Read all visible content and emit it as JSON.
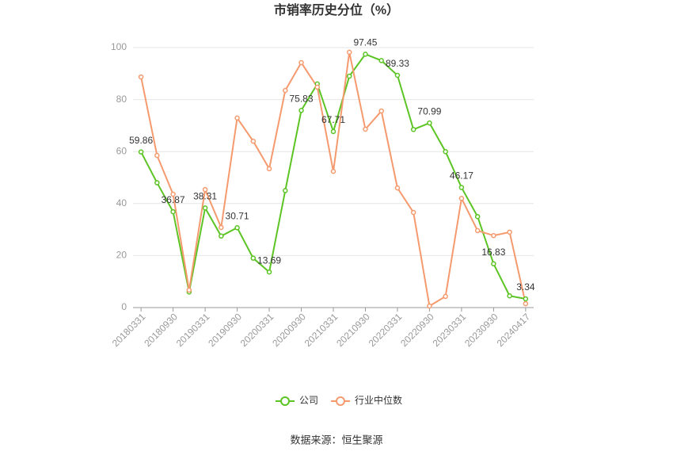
{
  "chart_data": {
    "type": "line",
    "title": "市销率历史分位（%）",
    "categories": [
      "20180331",
      null,
      "20180930",
      null,
      "20190331",
      null,
      "20190930",
      null,
      "20200331",
      null,
      "20200930",
      null,
      "20210331",
      null,
      "20210930",
      null,
      "20220331",
      null,
      "20220930",
      null,
      "20230331",
      null,
      "20230930",
      null,
      "20240417"
    ],
    "series": [
      {
        "name": "公司",
        "color": "#5cc424",
        "values": [
          59.86,
          48,
          36.87,
          6,
          38.31,
          27.5,
          30.71,
          19,
          13.69,
          45,
          75.83,
          86,
          67.71,
          89,
          97.45,
          95,
          89.33,
          68.5,
          70.99,
          60,
          46.17,
          35,
          16.83,
          4.5,
          3.34
        ],
        "value_labels": [
          "59.86",
          null,
          "36.87",
          null,
          "38.31",
          null,
          "30.71",
          null,
          "13.69",
          null,
          "75.83",
          null,
          "67.71",
          null,
          "97.45",
          null,
          "89.33",
          null,
          "70.99",
          null,
          "46.17",
          null,
          "16.83",
          null,
          "3.34"
        ]
      },
      {
        "name": "行业中位数",
        "color": "#f59a6e",
        "values": [
          88.7,
          58.5,
          43.6,
          6.7,
          45.4,
          30.8,
          72.9,
          64,
          53.4,
          83.5,
          94.2,
          84.8,
          52.4,
          98.2,
          68.6,
          75.6,
          46,
          36.6,
          0.6,
          4.3,
          42,
          29.6,
          27.7,
          29,
          1.5
        ]
      }
    ],
    "ylim": [
      0,
      100
    ],
    "yticks": [
      0,
      20,
      40,
      60,
      80,
      100
    ],
    "grid": true,
    "legend": "bottom",
    "source": "数据来源：恒生聚源"
  }
}
